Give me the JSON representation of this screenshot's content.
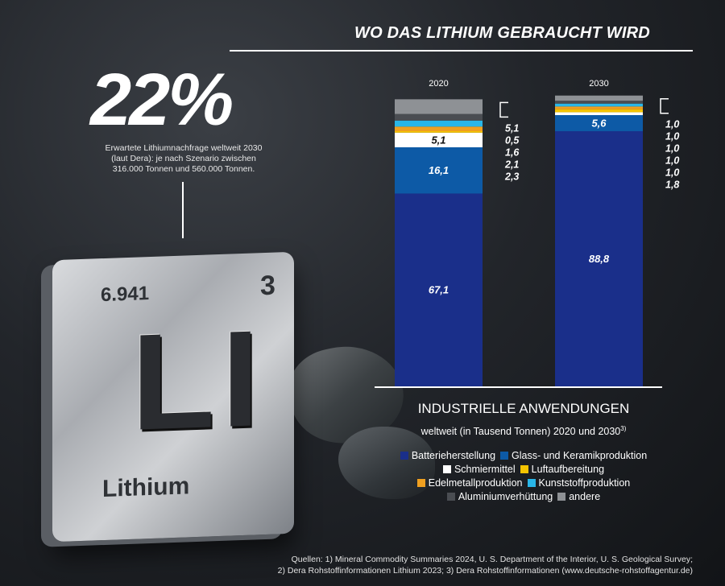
{
  "title": "WO DAS LITHIUM GEBRAUCHT WIRD",
  "headline": {
    "percent": "22%",
    "note_lines": [
      "Erwartete Lithiumnachfrage weltweit 2030",
      "(laut Dera): je nach Szenario zwischen",
      "316.000 Tonnen und 560.000 Tonnen."
    ]
  },
  "element": {
    "atomic_mass": "6.941",
    "atomic_number": "3",
    "symbol": "LI",
    "name": "Lithium"
  },
  "colors": {
    "Batterieherstellung": "#1a2f8a",
    "Glass- und Keramikproduktion": "#0d5aa6",
    "Schmiermittel": "#ffffff",
    "Luftaufbereitung": "#f5c400",
    "Edelmetallproduktion": "#f0a020",
    "Kunststoffproduktion": "#29b6e8",
    "Aluminiumverhüttung": "#4a4d52",
    "andere": "#8e9195"
  },
  "chart_data": {
    "type": "bar",
    "stacked": true,
    "title": "INDUSTRIELLE ANWENDUNGEN",
    "subtitle": "weltweit (in Tausend Tonnen) 2020 und 2030",
    "subtitle_sup": "3)",
    "categories": [
      "2020",
      "2030"
    ],
    "series": [
      {
        "name": "Batterieherstellung",
        "values": [
          67.1,
          88.8
        ],
        "labels": [
          "67,1",
          "88,8"
        ]
      },
      {
        "name": "Glass- und Keramikproduktion",
        "values": [
          16.1,
          5.6
        ],
        "labels": [
          "16,1",
          "5,6"
        ]
      },
      {
        "name": "Schmiermittel",
        "values": [
          5.1,
          1.0
        ],
        "labels": [
          "5,1",
          ""
        ]
      },
      {
        "name": "Luftaufbereitung",
        "values": [
          0.5,
          1.0
        ],
        "labels": [
          "",
          ""
        ]
      },
      {
        "name": "Edelmetallproduktion",
        "values": [
          1.6,
          1.0
        ],
        "labels": [
          "",
          ""
        ]
      },
      {
        "name": "Kunststoffproduktion",
        "values": [
          2.1,
          1.0
        ],
        "labels": [
          "",
          ""
        ]
      },
      {
        "name": "Aluminiumverhüttung",
        "values": [
          2.3,
          1.0
        ],
        "labels": [
          "",
          ""
        ]
      },
      {
        "name": "andere",
        "values": [
          5.1,
          1.8
        ],
        "labels": [
          "",
          ""
        ]
      }
    ],
    "side_labels": [
      [
        "5,1",
        "0,5",
        "1,6",
        "2,1",
        "2,3"
      ],
      [
        "1,0",
        "1,0",
        "1,0",
        "1,0",
        "1,0",
        "1,8"
      ]
    ],
    "ylim": [
      0,
      100
    ]
  },
  "legend_rows": [
    [
      "Batterieherstellung",
      "Glass- und Keramikproduktion"
    ],
    [
      "Schmiermittel",
      "Luftaufbereitung"
    ],
    [
      "Edelmetallproduktion",
      "Kunststoffproduktion"
    ],
    [
      "Aluminiumverhüttung",
      "andere"
    ]
  ],
  "sources": [
    "Quellen: 1) Mineral Commodity Summaries 2024, U. S. Department of the Interior, U. S. Geological Survey;",
    "2) Dera Rohstoffinformationen Lithium 2023; 3) Dera Rohstoffinformationen (www.deutsche-rohstoffagentur.de)"
  ]
}
